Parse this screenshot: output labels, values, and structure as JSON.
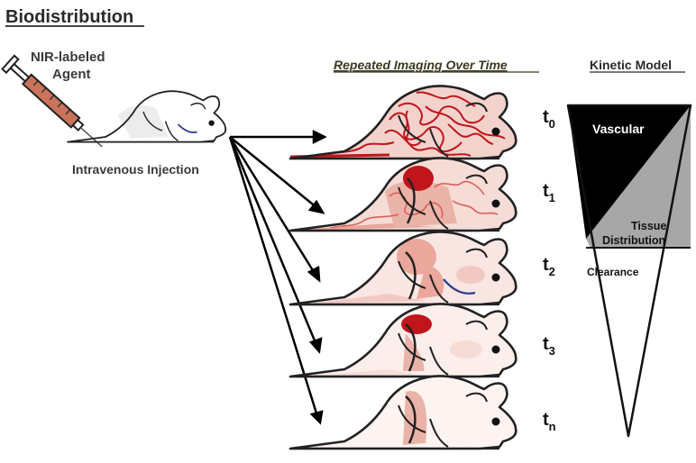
{
  "title": "Biodistribution",
  "agent_label_line1": "NIR-labeled",
  "agent_label_line2": "Agent",
  "injection_label": "Intravenous Injection",
  "repeated_header": "Repeated Imaging Over Time",
  "kinetic_header": "Kinetic Model",
  "timepoints": [
    {
      "main": "t",
      "sub": "0"
    },
    {
      "main": "t",
      "sub": "1"
    },
    {
      "main": "t",
      "sub": "2"
    },
    {
      "main": "t",
      "sub": "3"
    },
    {
      "main": "t",
      "sub": "n"
    }
  ],
  "kinetic": {
    "vascular": "Vascular",
    "tissue_line1": "Tissue",
    "tissue_line2": "Distribution",
    "clearance": "Clearance"
  },
  "colors": {
    "dark_red": "#c0151b",
    "medium_red": "#d9615a",
    "light_pink": "#f1c9c2",
    "vessel_blue": "#2b3a8f",
    "vascular_fill": "#000000",
    "tissue_fill": "#a7a7a7",
    "syringe_fill": "#c9735a"
  }
}
